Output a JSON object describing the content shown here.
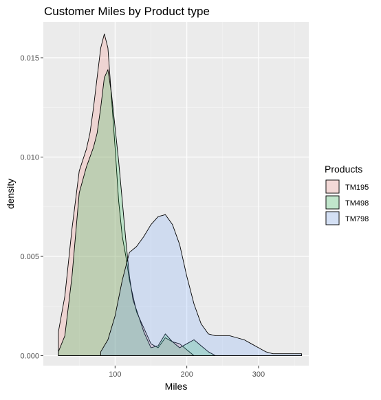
{
  "chart_data": {
    "type": "area",
    "subtype": "density",
    "title": "Customer Miles by Product type",
    "xlabel": "Miles",
    "ylabel": "density",
    "xlim": [
      0,
      370
    ],
    "ylim": [
      -0.0005,
      0.0168
    ],
    "xticks": [
      100,
      200,
      300
    ],
    "yticks": [
      0.0,
      0.005,
      0.01,
      0.015
    ],
    "ytick_labels": [
      "0.000",
      "0.005",
      "0.010",
      "0.015"
    ],
    "grid": true,
    "legend": {
      "title": "Products",
      "position": "right"
    },
    "series": [
      {
        "name": "TM195",
        "color": "#F8766D",
        "x": [
          21,
          30,
          40,
          50,
          60,
          65,
          70,
          75,
          80,
          85,
          90,
          95,
          100,
          105,
          110,
          115,
          120,
          125,
          130,
          140,
          150,
          160,
          170,
          180,
          190,
          200,
          210
        ],
        "y": [
          0.0012,
          0.003,
          0.0064,
          0.0093,
          0.0104,
          0.0112,
          0.0125,
          0.014,
          0.0155,
          0.0162,
          0.0155,
          0.013,
          0.0105,
          0.0078,
          0.006,
          0.005,
          0.0038,
          0.003,
          0.0022,
          0.0014,
          0.0006,
          0.0004,
          0.0009,
          0.0007,
          0.0006,
          0.0003,
          0.0
        ]
      },
      {
        "name": "TM498",
        "color": "#00BA38",
        "x": [
          21,
          30,
          40,
          50,
          60,
          70,
          75,
          80,
          85,
          90,
          95,
          100,
          105,
          110,
          115,
          120,
          125,
          130,
          140,
          150,
          160,
          170,
          180,
          190,
          200,
          210,
          220,
          230,
          240
        ],
        "y": [
          0.0002,
          0.001,
          0.004,
          0.0082,
          0.0095,
          0.0105,
          0.0112,
          0.0125,
          0.014,
          0.0144,
          0.0132,
          0.0115,
          0.0098,
          0.0078,
          0.0058,
          0.004,
          0.0028,
          0.0023,
          0.0012,
          0.0004,
          0.0005,
          0.0011,
          0.0007,
          0.0004,
          0.0006,
          0.0008,
          0.0005,
          0.0002,
          0.0
        ]
      },
      {
        "name": "TM798",
        "color": "#619CFF",
        "x": [
          80,
          90,
          100,
          110,
          120,
          130,
          140,
          150,
          160,
          170,
          180,
          190,
          200,
          210,
          220,
          230,
          240,
          250,
          260,
          270,
          280,
          290,
          300,
          310,
          320,
          330,
          340,
          350,
          360
        ],
        "y": [
          0.0002,
          0.0008,
          0.002,
          0.0038,
          0.0052,
          0.0055,
          0.006,
          0.0066,
          0.007,
          0.0071,
          0.0066,
          0.0056,
          0.004,
          0.0026,
          0.0016,
          0.0011,
          0.001,
          0.001,
          0.001,
          0.0009,
          0.0008,
          0.0006,
          0.0004,
          0.0002,
          0.0001,
          0.0001,
          0.0001,
          0.0001,
          0.0001
        ]
      }
    ]
  }
}
